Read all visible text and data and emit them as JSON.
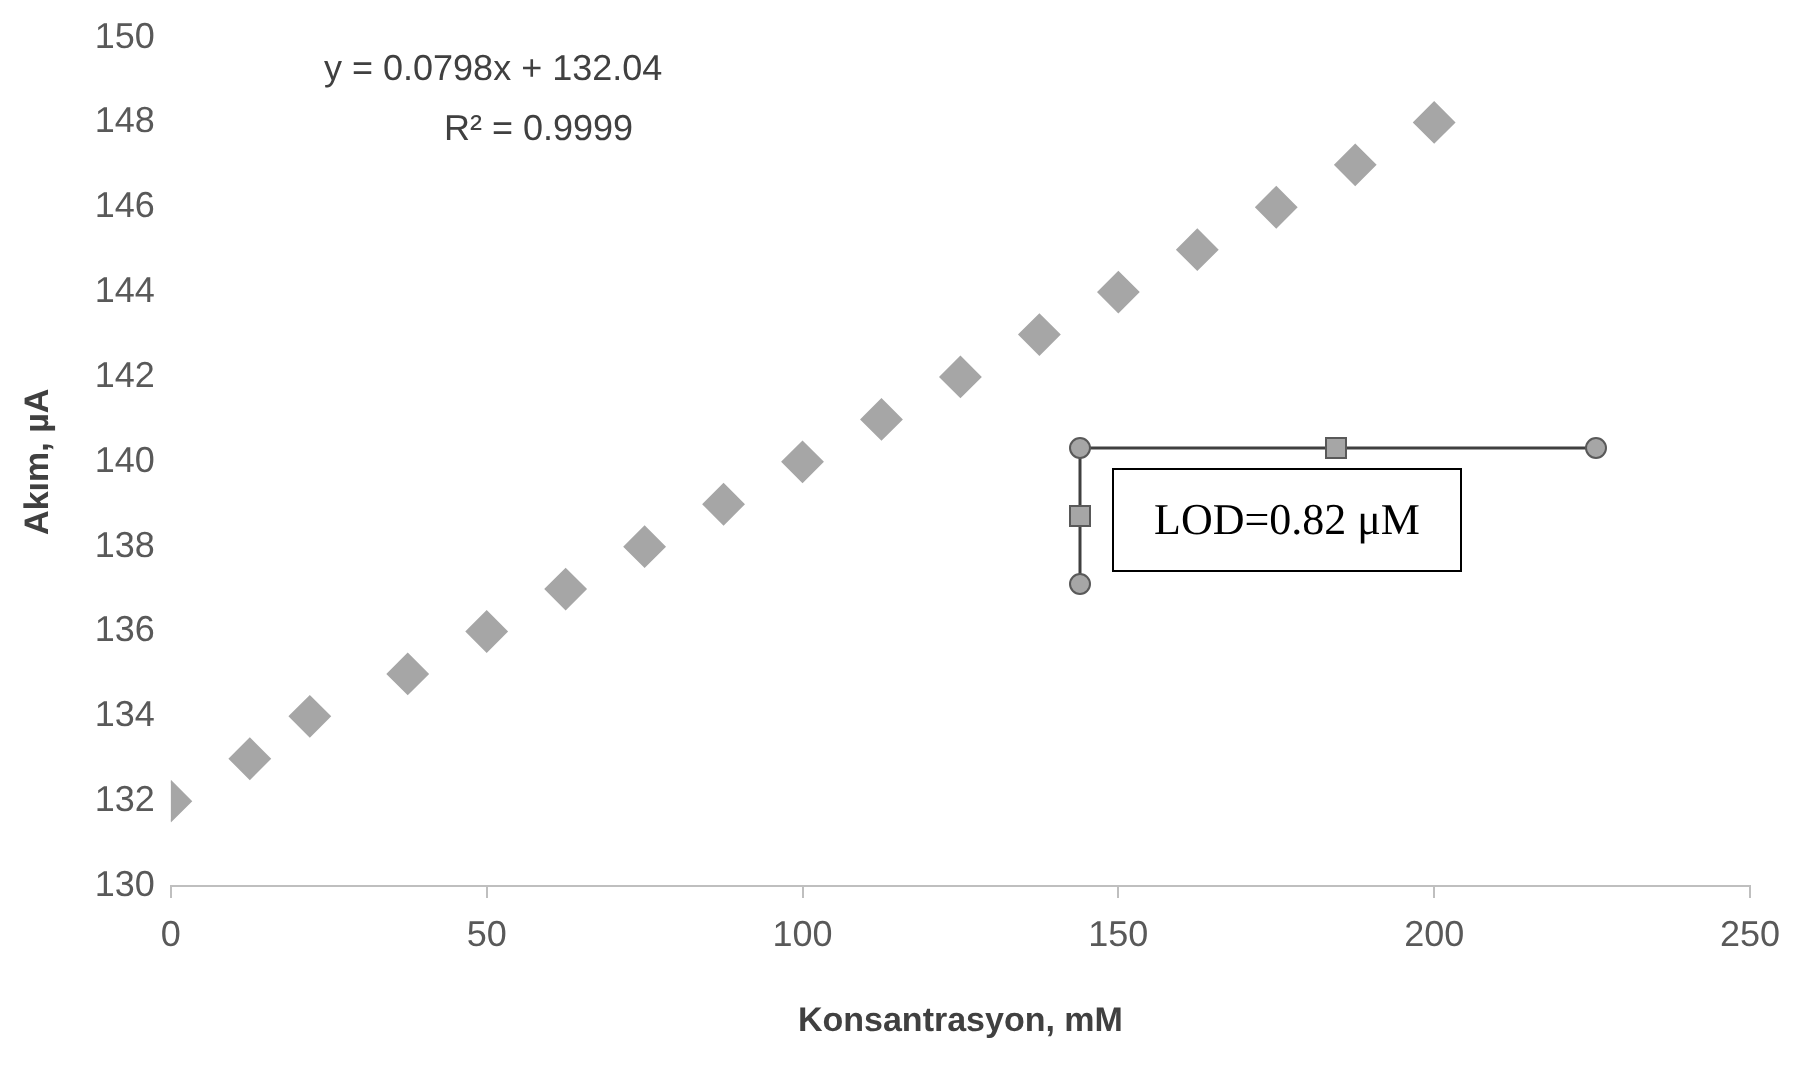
{
  "chart_data": {
    "type": "scatter",
    "xlabel": "Konsantrasyon, mM",
    "ylabel": "Akım, µA",
    "x": [
      0,
      12.5,
      22,
      37.5,
      50,
      62.5,
      75,
      87.5,
      100,
      112.5,
      125,
      137.5,
      150,
      162.5,
      175,
      187.5,
      200
    ],
    "series": [
      {
        "color": "#a6a6a6",
        "values": [
          132,
          133,
          134,
          135,
          136,
          137,
          138,
          139,
          140,
          141,
          142,
          143,
          144,
          145,
          146,
          147,
          148
        ]
      }
    ],
    "xlim": [
      0,
      250
    ],
    "xticks": [
      0,
      50,
      100,
      150,
      200,
      250
    ],
    "ylim": [
      130,
      150
    ],
    "yticks": [
      130,
      132,
      134,
      136,
      138,
      140,
      142,
      144,
      146,
      148,
      150
    ],
    "marker": "diamond",
    "grid": false,
    "legend": false,
    "annotations": [
      "y = 0.0798x + 132.04",
      "R² = 0.9999",
      "LOD=0.82 μM"
    ]
  }
}
